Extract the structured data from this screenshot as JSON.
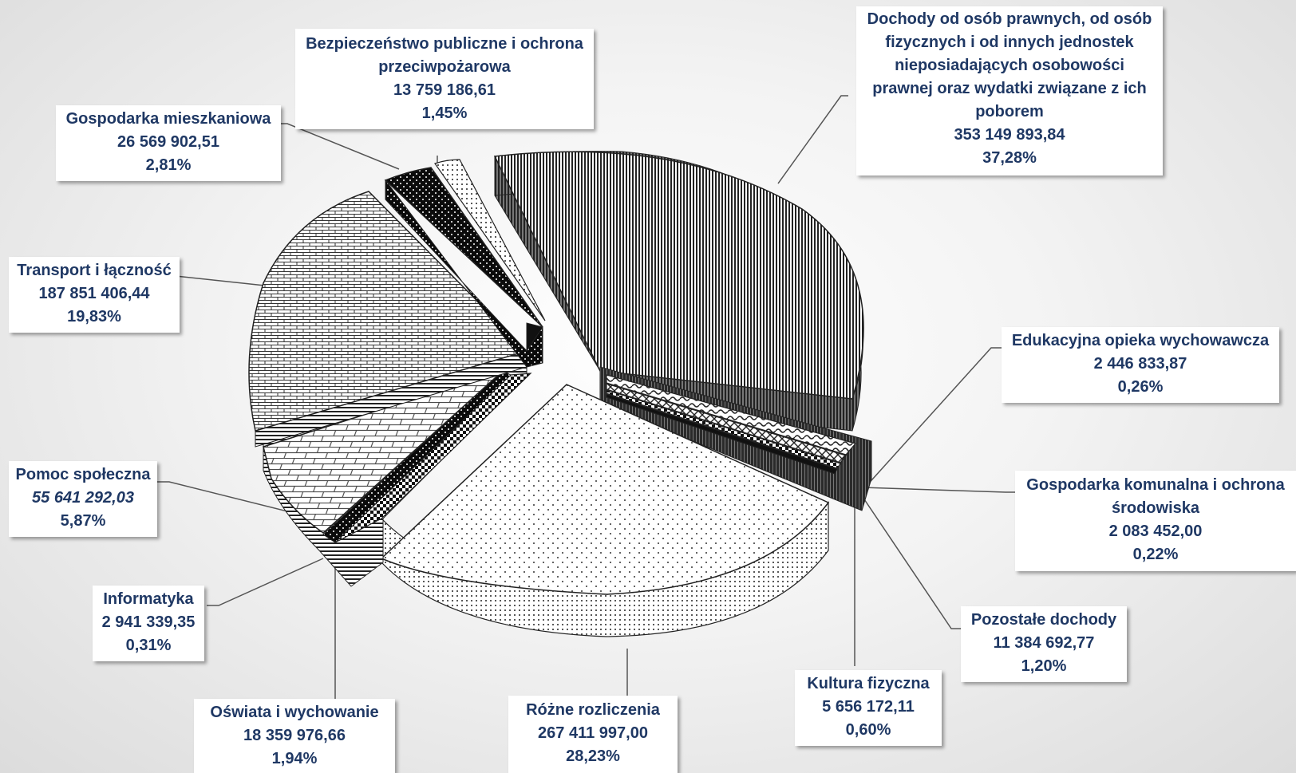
{
  "chart_data": {
    "type": "pie",
    "title": "",
    "slices": [
      {
        "label": "Dochody od osób prawnych, od osób fizycznych i od innych jednostek nieposiadających osobowości prawnej oraz wydatki związane z ich poborem",
        "value_text": "353 149 893,84",
        "percent_text": "37,28%",
        "value": 353149893.84,
        "percent": 37.28
      },
      {
        "label": "Edukacyjna opieka wychowawcza",
        "value_text": "2 446 833,87",
        "percent_text": "0,26%",
        "value": 2446833.87,
        "percent": 0.26
      },
      {
        "label": "Gospodarka komunalna i ochrona środowiska",
        "value_text": "2 083 452,00",
        "percent_text": "0,22%",
        "value": 2083452.0,
        "percent": 0.22
      },
      {
        "label": "Pozostałe dochody",
        "value_text": "11 384 692,77",
        "percent_text": "1,20%",
        "value": 11384692.77,
        "percent": 1.2
      },
      {
        "label": "Kultura fizyczna",
        "value_text": "5 656 172,11",
        "percent_text": "0,60%",
        "value": 5656172.11,
        "percent": 0.6
      },
      {
        "label": "Różne rozliczenia",
        "value_text": "267 411 997,00",
        "percent_text": "28,23%",
        "value": 267411997.0,
        "percent": 28.23
      },
      {
        "label": "Oświata i wychowanie",
        "value_text": "18 359 976,66",
        "percent_text": "1,94%",
        "value": 18359976.66,
        "percent": 1.94
      },
      {
        "label": "Informatyka",
        "value_text": "2 941 339,35",
        "percent_text": "0,31%",
        "value": 2941339.35,
        "percent": 0.31
      },
      {
        "label": "Pomoc społeczna",
        "value_text": "55 641 292,03",
        "percent_text": "5,87%",
        "value": 55641292.03,
        "percent": 5.87
      },
      {
        "label": "Transport i łączność",
        "value_text": "187 851 406,44",
        "percent_text": "19,83%",
        "value": 187851406.44,
        "percent": 19.83
      },
      {
        "label": "Gospodarka mieszkaniowa",
        "value_text": "26 569 902,51",
        "percent_text": "2,81%",
        "value": 26569902.51,
        "percent": 2.81
      },
      {
        "label": "Bezpieczeństwo publiczne i ochrona przeciwpożarowa",
        "value_text": "13 759 186,61",
        "percent_text": "1,45%",
        "value": 13759186.61,
        "percent": 1.45
      }
    ],
    "label_lines": {
      "dochody": [
        "Dochody od osób prawnych, od osób",
        "fizycznych i od innych jednostek",
        "nieposiadających osobowości",
        "prawnej oraz wydatki związane z ich",
        "poborem"
      ],
      "bezp": [
        "Bezpieczeństwo publiczne i ochrona",
        "przeciwpożarowa"
      ],
      "gk": [
        "Gospodarka komunalna i ochrona",
        "środowiska"
      ]
    }
  }
}
